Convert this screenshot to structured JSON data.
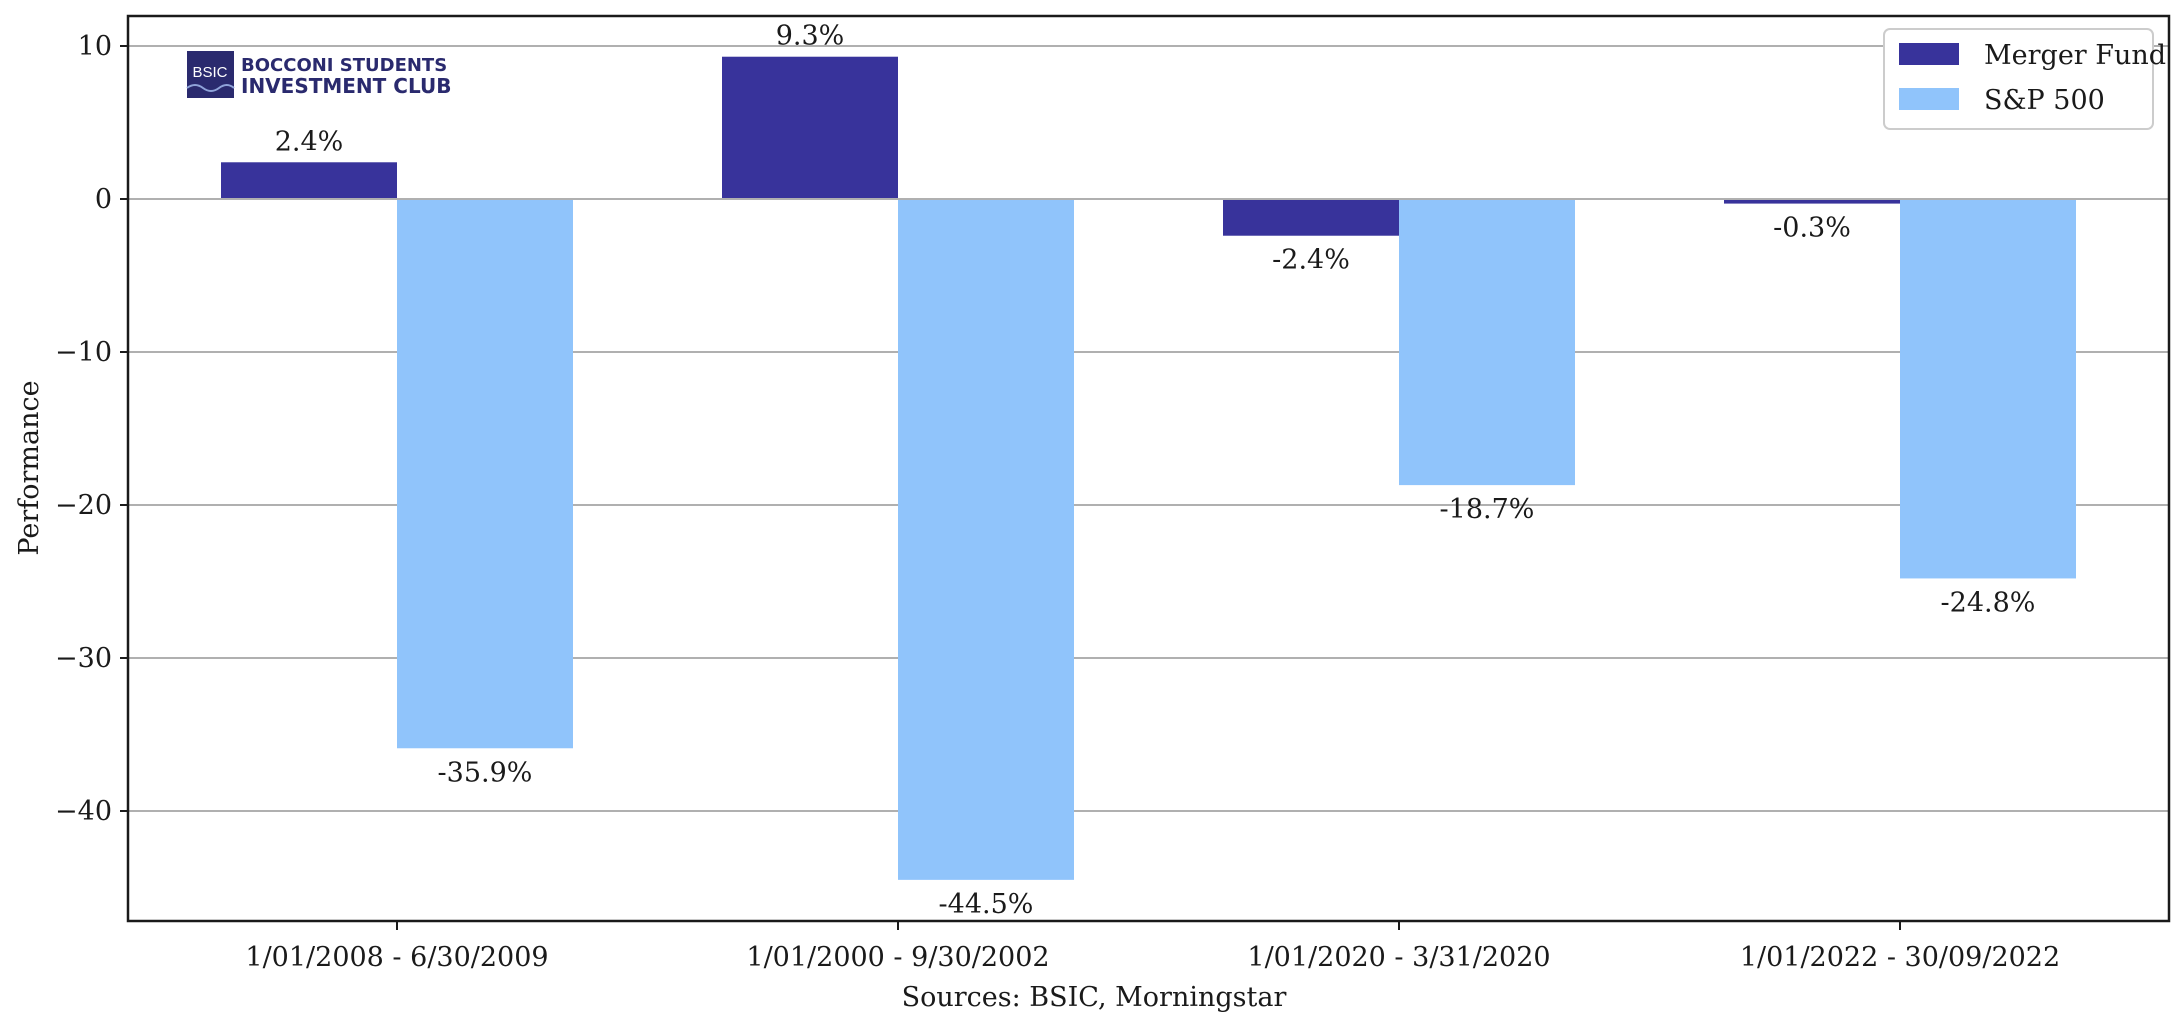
{
  "chart_data": {
    "type": "bar",
    "title": "",
    "xlabel": "Sources: BSIC, Morningstar",
    "ylabel": "Performance",
    "ylim": [
      -47,
      10
    ],
    "yticks": [
      10,
      0,
      -10,
      -20,
      -30,
      -40
    ],
    "grid": "horizontal",
    "legend_position": "top-right",
    "categories": [
      "1/01/2008 - 6/30/2009",
      "1/01/2000 - 9/30/2002",
      "1/01/2020 - 3/31/2020",
      "1/01/2022 - 30/09/2022"
    ],
    "series": [
      {
        "name": "Merger Fund",
        "color": "#38339b",
        "values": [
          2.4,
          9.3,
          -2.4,
          -0.3
        ],
        "labels": [
          "2.4%",
          "9.3%",
          "-2.4%",
          "-0.3%"
        ]
      },
      {
        "name": "S&P 500",
        "color": "#90c4fb",
        "values": [
          -35.9,
          -44.5,
          -18.7,
          -24.8
        ],
        "labels": [
          "-35.9%",
          "-44.5%",
          "-18.7%",
          "-24.8%"
        ]
      }
    ]
  },
  "logo": {
    "mark": "BSIC",
    "line1": "BOCCONI STUDENTS",
    "line2": "INVESTMENT CLUB"
  }
}
